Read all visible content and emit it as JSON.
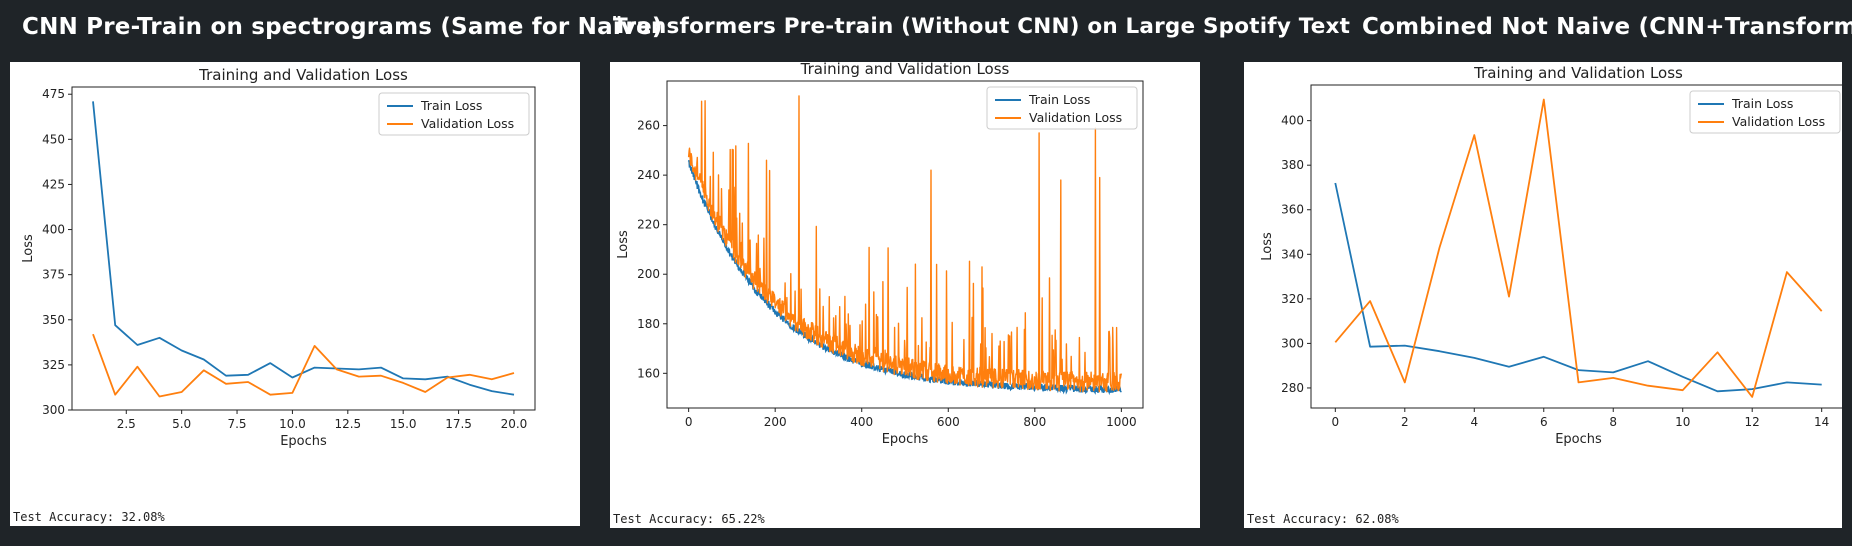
{
  "headings": [
    "CNN Pre-Train on spectrograms (Same for Naïve)",
    "Transformers Pre-train (Without CNN) on Large Spotify Text",
    "Combined Not Naive (CNN+Transformers)"
  ],
  "accuracies": [
    "Test Accuracy: 32.08%",
    "Test Accuracy: 65.22%",
    "Test Accuracy: 62.08%"
  ],
  "colors": {
    "train": "#1f77b4",
    "val": "#ff7f0e",
    "background": "#1f2428"
  },
  "chart_data": [
    {
      "type": "line",
      "title": "Training and Validation Loss",
      "xlabel": "Epochs",
      "ylabel": "Loss",
      "xlim": [
        0.05,
        20.95
      ],
      "ylim": [
        300,
        479
      ],
      "xticks": [
        2.5,
        5.0,
        7.5,
        10.0,
        12.5,
        15.0,
        17.5,
        20.0
      ],
      "xtick_labels": [
        "2.5",
        "5.0",
        "7.5",
        "10.0",
        "12.5",
        "15.0",
        "17.5",
        "20.0"
      ],
      "yticks": [
        300,
        325,
        350,
        375,
        400,
        425,
        450,
        475
      ],
      "legend_position": "upper right",
      "grid": false,
      "x": [
        1,
        2,
        3,
        4,
        5,
        6,
        7,
        8,
        9,
        10,
        11,
        12,
        13,
        14,
        15,
        16,
        17,
        18,
        19,
        20
      ],
      "series": [
        {
          "name": "Train Loss",
          "values": [
            471,
            347,
            336,
            340,
            333,
            328,
            319,
            319.5,
            326,
            318,
            323.5,
            323,
            322.5,
            323.5,
            317.5,
            317,
            318.5,
            314,
            310.5,
            308.5
          ]
        },
        {
          "name": "Validation Loss",
          "values": [
            342,
            308.5,
            324,
            307.5,
            310,
            322,
            314.5,
            315.5,
            308.5,
            309.5,
            335.5,
            322.5,
            318.5,
            319,
            315,
            310,
            318,
            319.5,
            317,
            320.5
          ]
        }
      ]
    },
    {
      "type": "line",
      "title": "Training and Validation Loss",
      "xlabel": "Epochs",
      "ylabel": "Loss",
      "xlim": [
        -50,
        1050
      ],
      "ylim": [
        146,
        278
      ],
      "xticks": [
        0,
        200,
        400,
        600,
        800,
        1000
      ],
      "xtick_labels": [
        "0",
        "200",
        "400",
        "600",
        "800",
        "1000"
      ],
      "yticks": [
        160,
        180,
        200,
        220,
        240,
        260
      ],
      "legend_position": "upper right",
      "grid": false,
      "x_range": [
        0,
        1000
      ],
      "series": [
        {
          "name": "Train Loss",
          "start": 245,
          "floor": 153,
          "decay_epochs": 190
        },
        {
          "name": "Validation Loss",
          "start": 248,
          "floor": 155,
          "decay_epochs": 190
        }
      ],
      "notable_spikes": [
        {
          "x": 255,
          "y": 272
        },
        {
          "x": 810,
          "y": 257
        },
        {
          "x": 940,
          "y": 259
        },
        {
          "x": 860,
          "y": 238
        },
        {
          "x": 950,
          "y": 239
        },
        {
          "x": 180,
          "y": 246
        },
        {
          "x": 560,
          "y": 242
        }
      ]
    },
    {
      "type": "line",
      "title": "Training and Validation Loss",
      "xlabel": "Epochs",
      "ylabel": "Loss",
      "xlim": [
        -0.7,
        14.7
      ],
      "ylim": [
        271,
        416
      ],
      "xticks": [
        0,
        2,
        4,
        6,
        8,
        10,
        12,
        14
      ],
      "xtick_labels": [
        "0",
        "2",
        "4",
        "6",
        "8",
        "10",
        "12",
        "14"
      ],
      "yticks": [
        280,
        300,
        320,
        340,
        360,
        380,
        400
      ],
      "legend_position": "upper right",
      "grid": false,
      "x": [
        0,
        1,
        2,
        3,
        4,
        5,
        6,
        7,
        8,
        9,
        10,
        11,
        12,
        13,
        14
      ],
      "series": [
        {
          "name": "Train Loss",
          "values": [
            372,
            298.5,
            299,
            296.5,
            293.5,
            289.5,
            294,
            288,
            287,
            292,
            285,
            278.5,
            279.5,
            282.5,
            281.5
          ]
        },
        {
          "name": "Validation Loss",
          "values": [
            300.5,
            319,
            282.5,
            343,
            393.5,
            321,
            409.5,
            282.5,
            284.5,
            281,
            279,
            296,
            276,
            332,
            314.5
          ]
        }
      ]
    }
  ]
}
